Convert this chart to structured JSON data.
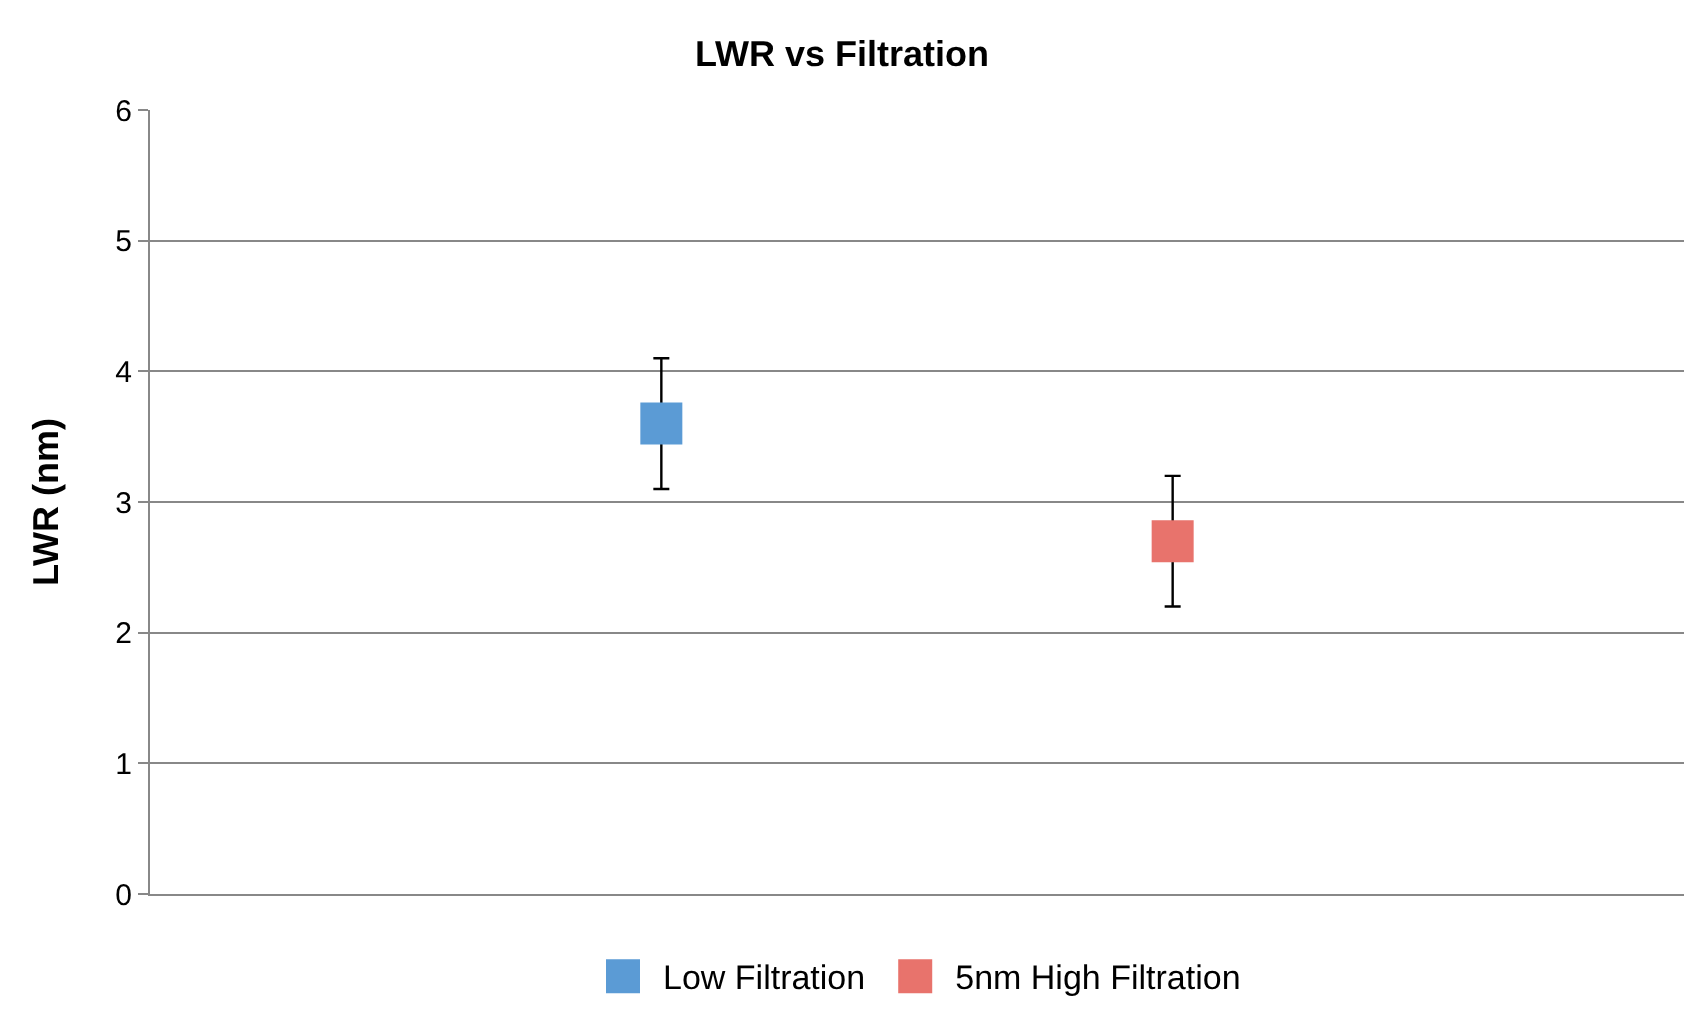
{
  "chart_data": {
    "type": "scatter",
    "title": "LWR vs Filtration",
    "ylabel": "LWR (nm)",
    "categories": [
      null,
      null
    ],
    "series": [
      {
        "name": "Low Filtration",
        "color": "#5b9bd5",
        "values": [
          3.6,
          null
        ],
        "errors": [
          0.5,
          null
        ]
      },
      {
        "name": "5nm High Filtration",
        "color": "#e8736c",
        "values": [
          null,
          2.7
        ],
        "errors": [
          null,
          0.5
        ]
      }
    ],
    "ylim": [
      0,
      6
    ],
    "yticks": [
      0,
      1,
      2,
      3,
      4,
      5,
      6
    ],
    "grid": "y",
    "legend": "bottom",
    "marker": "square",
    "tick_labels": "y"
  }
}
